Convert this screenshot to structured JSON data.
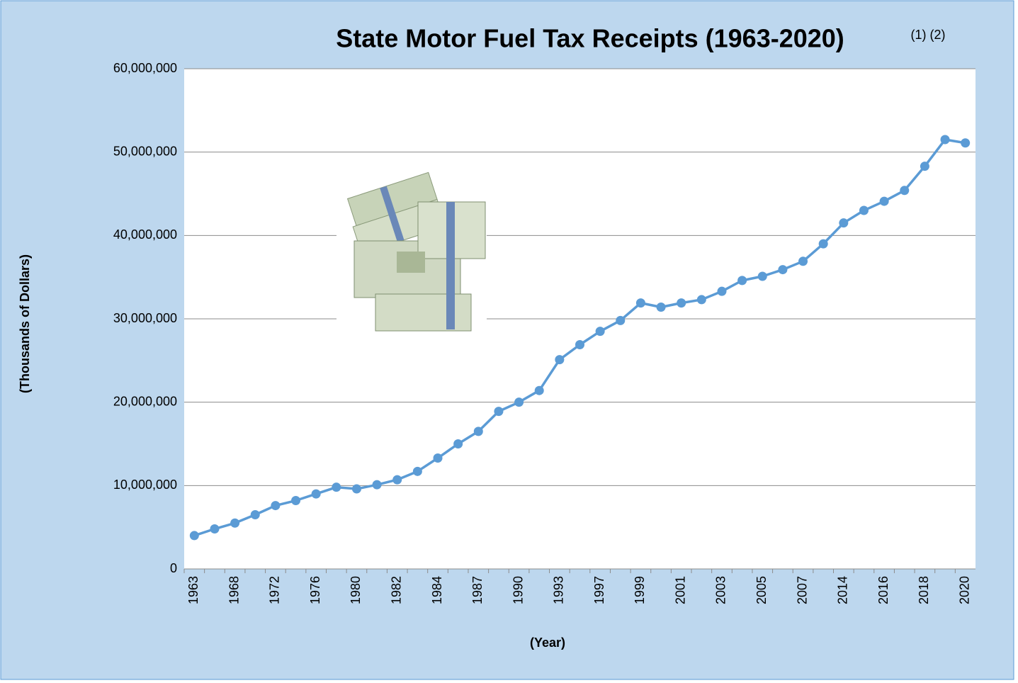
{
  "chart_data": {
    "type": "line",
    "title": "State Motor Fuel Tax Receipts (1963-2020)",
    "title_note": "(1) (2)",
    "x_label": "(Year)",
    "y_label": "(Thousands of Dollars)",
    "categories": [
      "1963",
      null,
      "1968",
      null,
      "1972",
      null,
      "1976",
      null,
      "1980",
      null,
      "1982",
      null,
      "1984",
      null,
      "1987",
      null,
      "1990",
      null,
      "1993",
      null,
      "1997",
      null,
      "1999",
      null,
      "2001",
      null,
      "2003",
      null,
      "2005",
      null,
      "2007",
      null,
      "2014",
      null,
      "2016",
      null,
      "2018",
      null,
      "2020"
    ],
    "series": [
      {
        "color": "#5b9bd5",
        "values": [
          4000000,
          4800000,
          5500000,
          6500000,
          7600000,
          8200000,
          9000000,
          9800000,
          9600000,
          10100000,
          10700000,
          11700000,
          13300000,
          15000000,
          16500000,
          18900000,
          20000000,
          21400000,
          25100000,
          26900000,
          28500000,
          29800000,
          31900000,
          31400000,
          31900000,
          32300000,
          33300000,
          34600000,
          35100000,
          35900000,
          36900000,
          39000000,
          41500000,
          43000000,
          44100000,
          45400000,
          48300000,
          51500000,
          51100000
        ]
      }
    ],
    "ylim": [
      0,
      60000000
    ],
    "yticks": [
      0,
      {
        "value": 10000000,
        "label": "10,000,000"
      },
      {
        "value": 20000000,
        "label": "20,000,000"
      },
      {
        "value": 30000000,
        "label": "30,000,000"
      },
      {
        "value": 40000000,
        "label": "40,000,000"
      },
      {
        "value": 50000000,
        "label": "50,000,000"
      },
      {
        "value": 60000000,
        "label": "60,000,000"
      }
    ],
    "grid": true
  }
}
